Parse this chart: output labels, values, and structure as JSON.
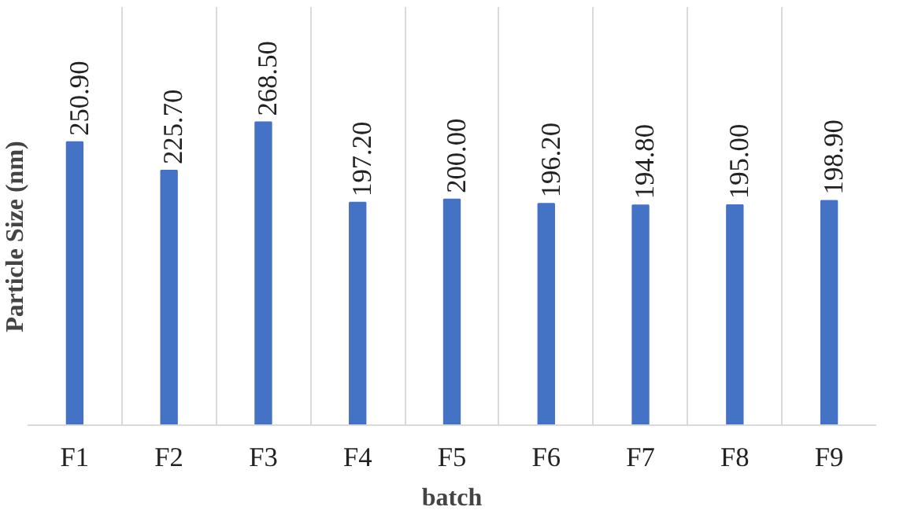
{
  "chart_data": {
    "type": "bar",
    "xlabel": "batch",
    "ylabel": "Particle Size (nm)",
    "categories": [
      "F1",
      "F2",
      "F3",
      "F4",
      "F5",
      "F6",
      "F7",
      "F8",
      "F9"
    ],
    "values": [
      250.9,
      225.7,
      268.5,
      197.2,
      200.0,
      196.2,
      194.8,
      195.0,
      198.9
    ],
    "value_labels": [
      "250.90",
      "225.70",
      "268.50",
      "197.20",
      "200.00",
      "196.20",
      "194.80",
      "195.00",
      "198.90"
    ],
    "color": "#4472c4",
    "grid": "x",
    "tick_labels": "x"
  }
}
